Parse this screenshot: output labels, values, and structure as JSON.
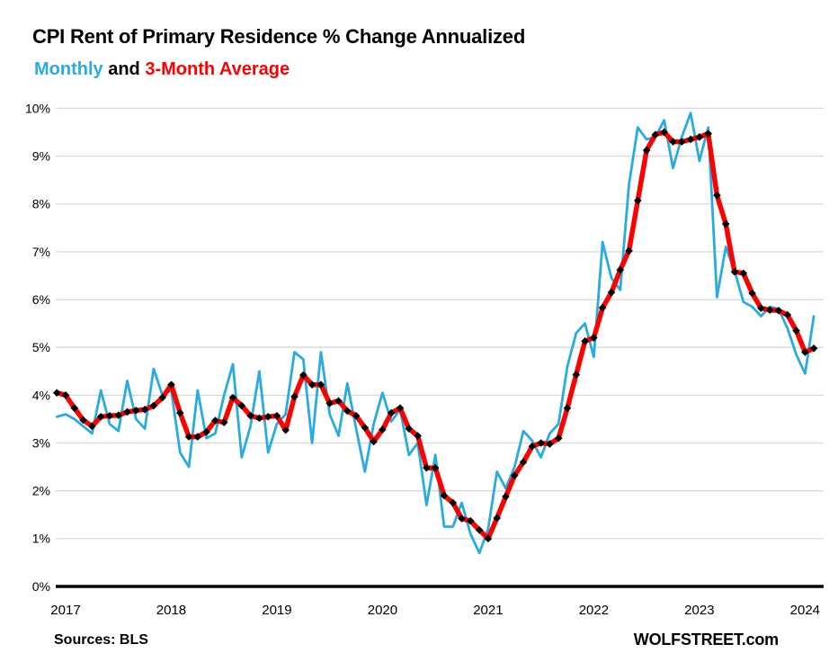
{
  "header": {
    "title": "CPI Rent of Primary Residence % Change Annualized",
    "subtitle_monthly": "Monthly",
    "subtitle_and": " and ",
    "subtitle_average": "3-Month Average"
  },
  "footer": {
    "source": "Sources: BLS",
    "brand": "WOLFSTREET.com"
  },
  "colors": {
    "monthly_line": "#29ABE2",
    "average_line": "#FF0000",
    "marker": "#000000",
    "gridline": "#D9D9D9",
    "axis_line": "#000000",
    "text": "#000000"
  },
  "chart_data": {
    "type": "line",
    "title": "CPI Rent of Primary Residence % Change Annualized",
    "subtitle": "Monthly and 3-Month Average",
    "x_start": "2016-12",
    "x_end": "2024-02",
    "x_tick_labels": [
      "2017",
      "2018",
      "2019",
      "2020",
      "2021",
      "2022",
      "2023",
      "2024"
    ],
    "y_tick_labels": [
      "0%",
      "1%",
      "2%",
      "3%",
      "4%",
      "5%",
      "6%",
      "7%",
      "8%",
      "9%",
      "10%"
    ],
    "ylim": [
      0,
      10
    ],
    "y_unit": "percent",
    "grid": "horizontal",
    "legend_position": "subtitle",
    "series": [
      {
        "name": "Monthly",
        "color": "#29ABE2",
        "marker": "none",
        "values": [
          3.55,
          3.6,
          3.5,
          3.35,
          3.2,
          4.1,
          3.4,
          3.25,
          4.3,
          3.5,
          3.3,
          4.55,
          4.0,
          4.1,
          2.8,
          2.5,
          4.1,
          3.1,
          3.2,
          4.0,
          4.65,
          2.7,
          3.35,
          4.5,
          2.8,
          3.4,
          3.6,
          4.9,
          4.75,
          3.0,
          4.9,
          3.6,
          3.15,
          4.25,
          3.3,
          2.4,
          3.4,
          4.05,
          3.45,
          3.7,
          2.75,
          3.0,
          1.7,
          2.75,
          1.25,
          1.25,
          1.75,
          1.1,
          0.7,
          1.2,
          2.4,
          2.05,
          2.5,
          3.25,
          3.05,
          2.7,
          3.2,
          3.4,
          4.6,
          5.3,
          5.5,
          4.8,
          7.2,
          6.45,
          6.2,
          8.4,
          9.6,
          9.35,
          9.4,
          9.75,
          8.75,
          9.4,
          9.9,
          8.9,
          9.6,
          6.05,
          7.1,
          6.6,
          5.95,
          5.85,
          5.65,
          5.85,
          5.8,
          5.4,
          4.85,
          4.45,
          5.65
        ]
      },
      {
        "name": "3-Month Average",
        "color": "#FF0000",
        "marker": "diamond",
        "values": [
          4.05,
          4.0,
          3.73,
          3.48,
          3.35,
          3.55,
          3.57,
          3.58,
          3.65,
          3.68,
          3.7,
          3.78,
          3.95,
          4.22,
          3.63,
          3.13,
          3.13,
          3.23,
          3.47,
          3.43,
          3.95,
          3.78,
          3.57,
          3.52,
          3.55,
          3.57,
          3.27,
          3.97,
          4.42,
          4.22,
          4.22,
          3.83,
          3.88,
          3.67,
          3.57,
          3.32,
          3.03,
          3.28,
          3.63,
          3.73,
          3.3,
          3.15,
          2.48,
          2.48,
          1.9,
          1.75,
          1.42,
          1.37,
          1.18,
          1.0,
          1.43,
          1.88,
          2.32,
          2.6,
          2.93,
          3.0,
          2.98,
          3.1,
          3.73,
          4.43,
          5.13,
          5.2,
          5.83,
          6.15,
          6.62,
          7.02,
          8.07,
          9.12,
          9.45,
          9.5,
          9.3,
          9.3,
          9.35,
          9.4,
          9.47,
          8.18,
          7.58,
          6.58,
          6.55,
          6.13,
          5.82,
          5.78,
          5.77,
          5.68,
          5.35,
          4.9,
          4.98
        ]
      }
    ]
  }
}
